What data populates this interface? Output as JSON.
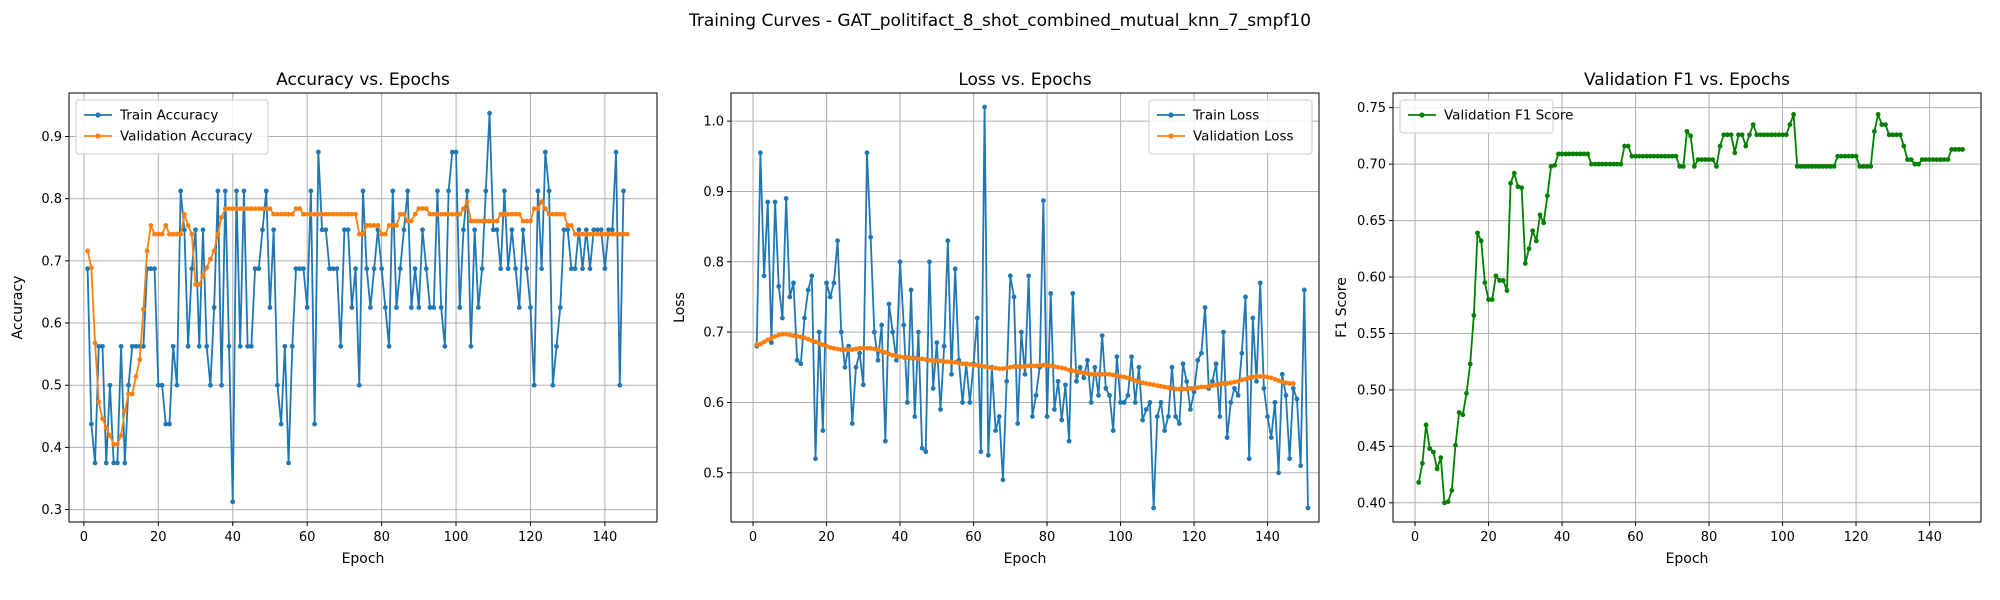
{
  "figure_title": "Training Curves - GAT_politifact_8_shot_combined_mutual_knn_7_smpf10",
  "chart_data": [
    {
      "type": "line",
      "title": "Accuracy vs. Epochs",
      "xlabel": "Epoch",
      "ylabel": "Accuracy",
      "xlim": [
        -4,
        154
      ],
      "ylim": [
        0.28,
        0.97
      ],
      "xticks": [
        0,
        20,
        40,
        60,
        80,
        100,
        120,
        140
      ],
      "yticks": [
        0.3,
        0.4,
        0.5,
        0.6,
        0.7,
        0.8,
        0.9
      ],
      "grid": true,
      "legend_position": "upper-left",
      "series": [
        {
          "name": "Train Accuracy",
          "color": "#1f77b4",
          "x_start": 1,
          "values": [
            0.6875,
            0.4375,
            0.375,
            0.5625,
            0.5625,
            0.375,
            0.5,
            0.375,
            0.375,
            0.5625,
            0.375,
            0.5,
            0.5625,
            0.5625,
            0.5625,
            0.5625,
            0.6875,
            0.6875,
            0.6875,
            0.5,
            0.5,
            0.4375,
            0.4375,
            0.5625,
            0.5,
            0.8125,
            0.75,
            0.5625,
            0.6875,
            0.75,
            0.5625,
            0.75,
            0.5625,
            0.5,
            0.625,
            0.8125,
            0.5,
            0.8125,
            0.5625,
            0.3125,
            0.8125,
            0.5625,
            0.8125,
            0.5625,
            0.5625,
            0.6875,
            0.6875,
            0.75,
            0.8125,
            0.625,
            0.75,
            0.5,
            0.4375,
            0.5625,
            0.375,
            0.5625,
            0.6875,
            0.6875,
            0.6875,
            0.625,
            0.8125,
            0.4375,
            0.875,
            0.75,
            0.75,
            0.6875,
            0.6875,
            0.6875,
            0.5625,
            0.75,
            0.75,
            0.625,
            0.6875,
            0.5,
            0.8125,
            0.6875,
            0.625,
            0.6875,
            0.75,
            0.6875,
            0.625,
            0.5625,
            0.8125,
            0.625,
            0.6875,
            0.75,
            0.8125,
            0.625,
            0.6875,
            0.625,
            0.75,
            0.6875,
            0.625,
            0.625,
            0.8125,
            0.625,
            0.5625,
            0.8125,
            0.875,
            0.875,
            0.625,
            0.75,
            0.8125,
            0.5625,
            0.75,
            0.625,
            0.6875,
            0.8125,
            0.9375,
            0.75,
            0.75,
            0.6875,
            0.8125,
            0.6875,
            0.75,
            0.6875,
            0.625,
            0.75,
            0.6875,
            0.625,
            0.5,
            0.8125,
            0.6875,
            0.875,
            0.8125,
            0.5,
            0.5625,
            0.625,
            0.75,
            0.75,
            0.6875,
            0.6875,
            0.75,
            0.6875,
            0.75,
            0.6875,
            0.75,
            0.75,
            0.75,
            0.6875,
            0.75,
            0.75,
            0.875,
            0.5,
            0.8125
          ]
        },
        {
          "name": "Validation Accuracy",
          "color": "#ff7f0e",
          "x_start": 1,
          "values": [
            0.716,
            0.689,
            0.568,
            0.473,
            0.446,
            0.432,
            0.419,
            0.405,
            0.405,
            0.419,
            0.459,
            0.486,
            0.486,
            0.514,
            0.541,
            0.622,
            0.716,
            0.757,
            0.743,
            0.743,
            0.743,
            0.757,
            0.743,
            0.743,
            0.743,
            0.743,
            0.775,
            0.757,
            0.743,
            0.662,
            0.662,
            0.676,
            0.689,
            0.703,
            0.716,
            0.743,
            0.77,
            0.784,
            0.784,
            0.784,
            0.784,
            0.784,
            0.784,
            0.784,
            0.784,
            0.784,
            0.784,
            0.784,
            0.784,
            0.784,
            0.775,
            0.775,
            0.775,
            0.775,
            0.775,
            0.775,
            0.784,
            0.784,
            0.775,
            0.775,
            0.775,
            0.775,
            0.775,
            0.775,
            0.775,
            0.775,
            0.775,
            0.775,
            0.775,
            0.775,
            0.775,
            0.775,
            0.775,
            0.743,
            0.743,
            0.757,
            0.757,
            0.757,
            0.757,
            0.743,
            0.743,
            0.757,
            0.757,
            0.757,
            0.775,
            0.775,
            0.764,
            0.764,
            0.775,
            0.784,
            0.784,
            0.784,
            0.775,
            0.775,
            0.775,
            0.775,
            0.775,
            0.775,
            0.775,
            0.775,
            0.775,
            0.784,
            0.795,
            0.764,
            0.764,
            0.764,
            0.764,
            0.764,
            0.764,
            0.764,
            0.764,
            0.775,
            0.775,
            0.775,
            0.775,
            0.775,
            0.775,
            0.764,
            0.764,
            0.764,
            0.784,
            0.784,
            0.795,
            0.784,
            0.775,
            0.775,
            0.775,
            0.775,
            0.775,
            0.757,
            0.757,
            0.743,
            0.743,
            0.743,
            0.743,
            0.743,
            0.743,
            0.743,
            0.743,
            0.743,
            0.743,
            0.743,
            0.743,
            0.743,
            0.743,
            0.743
          ]
        }
      ]
    },
    {
      "type": "line",
      "title": "Loss vs. Epochs",
      "xlabel": "Epoch",
      "ylabel": "Loss",
      "xlim": [
        -6,
        154
      ],
      "ylim": [
        0.43,
        1.04
      ],
      "xticks": [
        0,
        20,
        40,
        60,
        80,
        100,
        120,
        140
      ],
      "yticks": [
        0.5,
        0.6,
        0.7,
        0.8,
        0.9,
        1.0
      ],
      "grid": true,
      "legend_position": "upper-right",
      "series": [
        {
          "name": "Train Loss",
          "color": "#1f77b4",
          "x_start": 1,
          "values": [
            0.68,
            0.955,
            0.78,
            0.885,
            0.685,
            0.885,
            0.765,
            0.72,
            0.89,
            0.75,
            0.77,
            0.66,
            0.655,
            0.72,
            0.76,
            0.78,
            0.52,
            0.7,
            0.56,
            0.77,
            0.75,
            0.77,
            0.83,
            0.7,
            0.65,
            0.68,
            0.57,
            0.65,
            0.67,
            0.625,
            0.955,
            0.835,
            0.7,
            0.66,
            0.71,
            0.545,
            0.74,
            0.7,
            0.66,
            0.8,
            0.71,
            0.6,
            0.76,
            0.58,
            0.7,
            0.535,
            0.53,
            0.8,
            0.62,
            0.685,
            0.59,
            0.68,
            0.83,
            0.64,
            0.79,
            0.66,
            0.6,
            0.655,
            0.6,
            0.655,
            0.72,
            0.53,
            1.02,
            0.525,
            0.65,
            0.56,
            0.58,
            0.49,
            0.63,
            0.78,
            0.75,
            0.57,
            0.7,
            0.64,
            0.78,
            0.58,
            0.61,
            0.65,
            0.887,
            0.58,
            0.755,
            0.59,
            0.63,
            0.575,
            0.625,
            0.545,
            0.755,
            0.63,
            0.65,
            0.635,
            0.66,
            0.6,
            0.65,
            0.61,
            0.695,
            0.62,
            0.61,
            0.56,
            0.665,
            0.6,
            0.6,
            0.61,
            0.665,
            0.6,
            0.65,
            0.575,
            0.59,
            0.6,
            0.45,
            0.58,
            0.6,
            0.56,
            0.58,
            0.65,
            0.58,
            0.57,
            0.655,
            0.63,
            0.59,
            0.615,
            0.66,
            0.67,
            0.735,
            0.62,
            0.63,
            0.655,
            0.58,
            0.7,
            0.55,
            0.6,
            0.62,
            0.61,
            0.67,
            0.75,
            0.52,
            0.72,
            0.63,
            0.77,
            0.62,
            0.58,
            0.55,
            0.6,
            0.5,
            0.64,
            0.61,
            0.52,
            0.62,
            0.605,
            0.51,
            0.76,
            0.45
          ]
        },
        {
          "name": "Validation Loss",
          "color": "#ff7f0e",
          "x_start": 1,
          "values": [
            0.682,
            0.683,
            0.686,
            0.689,
            0.691,
            0.694,
            0.696,
            0.697,
            0.697,
            0.696,
            0.695,
            0.694,
            0.693,
            0.692,
            0.69,
            0.688,
            0.686,
            0.684,
            0.682,
            0.68,
            0.678,
            0.677,
            0.676,
            0.675,
            0.675,
            0.675,
            0.675,
            0.676,
            0.677,
            0.677,
            0.677,
            0.677,
            0.676,
            0.675,
            0.673,
            0.671,
            0.669,
            0.667,
            0.666,
            0.665,
            0.664,
            0.664,
            0.663,
            0.663,
            0.662,
            0.662,
            0.661,
            0.66,
            0.659,
            0.659,
            0.659,
            0.658,
            0.658,
            0.657,
            0.657,
            0.656,
            0.655,
            0.655,
            0.654,
            0.653,
            0.653,
            0.652,
            0.651,
            0.65,
            0.649,
            0.649,
            0.648,
            0.648,
            0.649,
            0.65,
            0.651,
            0.651,
            0.651,
            0.651,
            0.652,
            0.652,
            0.652,
            0.653,
            0.653,
            0.653,
            0.652,
            0.651,
            0.65,
            0.649,
            0.648,
            0.646,
            0.645,
            0.644,
            0.643,
            0.642,
            0.641,
            0.64,
            0.64,
            0.64,
            0.64,
            0.64,
            0.64,
            0.639,
            0.638,
            0.637,
            0.636,
            0.635,
            0.633,
            0.631,
            0.629,
            0.628,
            0.627,
            0.626,
            0.625,
            0.624,
            0.623,
            0.622,
            0.621,
            0.62,
            0.619,
            0.619,
            0.619,
            0.619,
            0.62,
            0.62,
            0.621,
            0.622,
            0.622,
            0.623,
            0.624,
            0.625,
            0.626,
            0.627,
            0.627,
            0.628,
            0.629,
            0.63,
            0.632,
            0.633,
            0.635,
            0.636,
            0.637,
            0.637,
            0.637,
            0.636,
            0.635,
            0.633,
            0.631,
            0.629,
            0.628,
            0.627,
            0.627
          ]
        }
      ]
    },
    {
      "type": "line",
      "title": "Validation F1 vs. Epochs",
      "xlabel": "Epoch",
      "ylabel": "F1 Score",
      "xlim": [
        -6,
        154
      ],
      "ylim": [
        0.383,
        0.763
      ],
      "xticks": [
        0,
        20,
        40,
        60,
        80,
        100,
        120,
        140
      ],
      "yticks": [
        0.4,
        0.45,
        0.5,
        0.55,
        0.6,
        0.65,
        0.7,
        0.75
      ],
      "grid": true,
      "legend_position": "upper-left",
      "series": [
        {
          "name": "Validation F1 Score",
          "color": "#008000",
          "x_start": 1,
          "values": [
            0.418,
            0.435,
            0.469,
            0.448,
            0.445,
            0.43,
            0.44,
            0.4,
            0.401,
            0.411,
            0.451,
            0.48,
            0.478,
            0.497,
            0.523,
            0.566,
            0.639,
            0.632,
            0.595,
            0.58,
            0.58,
            0.601,
            0.597,
            0.597,
            0.588,
            0.683,
            0.692,
            0.68,
            0.679,
            0.612,
            0.625,
            0.641,
            0.632,
            0.655,
            0.648,
            0.672,
            0.698,
            0.699,
            0.709,
            0.709,
            0.709,
            0.709,
            0.709,
            0.709,
            0.709,
            0.709,
            0.709,
            0.7,
            0.7,
            0.7,
            0.7,
            0.7,
            0.7,
            0.7,
            0.7,
            0.7,
            0.716,
            0.716,
            0.707,
            0.707,
            0.707,
            0.707,
            0.707,
            0.707,
            0.707,
            0.707,
            0.707,
            0.707,
            0.707,
            0.707,
            0.707,
            0.698,
            0.698,
            0.729,
            0.725,
            0.698,
            0.704,
            0.704,
            0.704,
            0.704,
            0.704,
            0.698,
            0.716,
            0.726,
            0.726,
            0.726,
            0.71,
            0.726,
            0.726,
            0.716,
            0.726,
            0.735,
            0.726,
            0.726,
            0.726,
            0.726,
            0.726,
            0.726,
            0.726,
            0.726,
            0.726,
            0.735,
            0.744,
            0.698,
            0.698,
            0.698,
            0.698,
            0.698,
            0.698,
            0.698,
            0.698,
            0.698,
            0.698,
            0.698,
            0.707,
            0.707,
            0.707,
            0.707,
            0.707,
            0.707,
            0.698,
            0.698,
            0.698,
            0.698,
            0.729,
            0.744,
            0.735,
            0.735,
            0.726,
            0.726,
            0.726,
            0.726,
            0.716,
            0.704,
            0.704,
            0.7,
            0.7,
            0.704,
            0.704,
            0.704,
            0.704,
            0.704,
            0.704,
            0.704,
            0.704,
            0.713,
            0.713,
            0.713,
            0.713
          ]
        }
      ]
    }
  ]
}
